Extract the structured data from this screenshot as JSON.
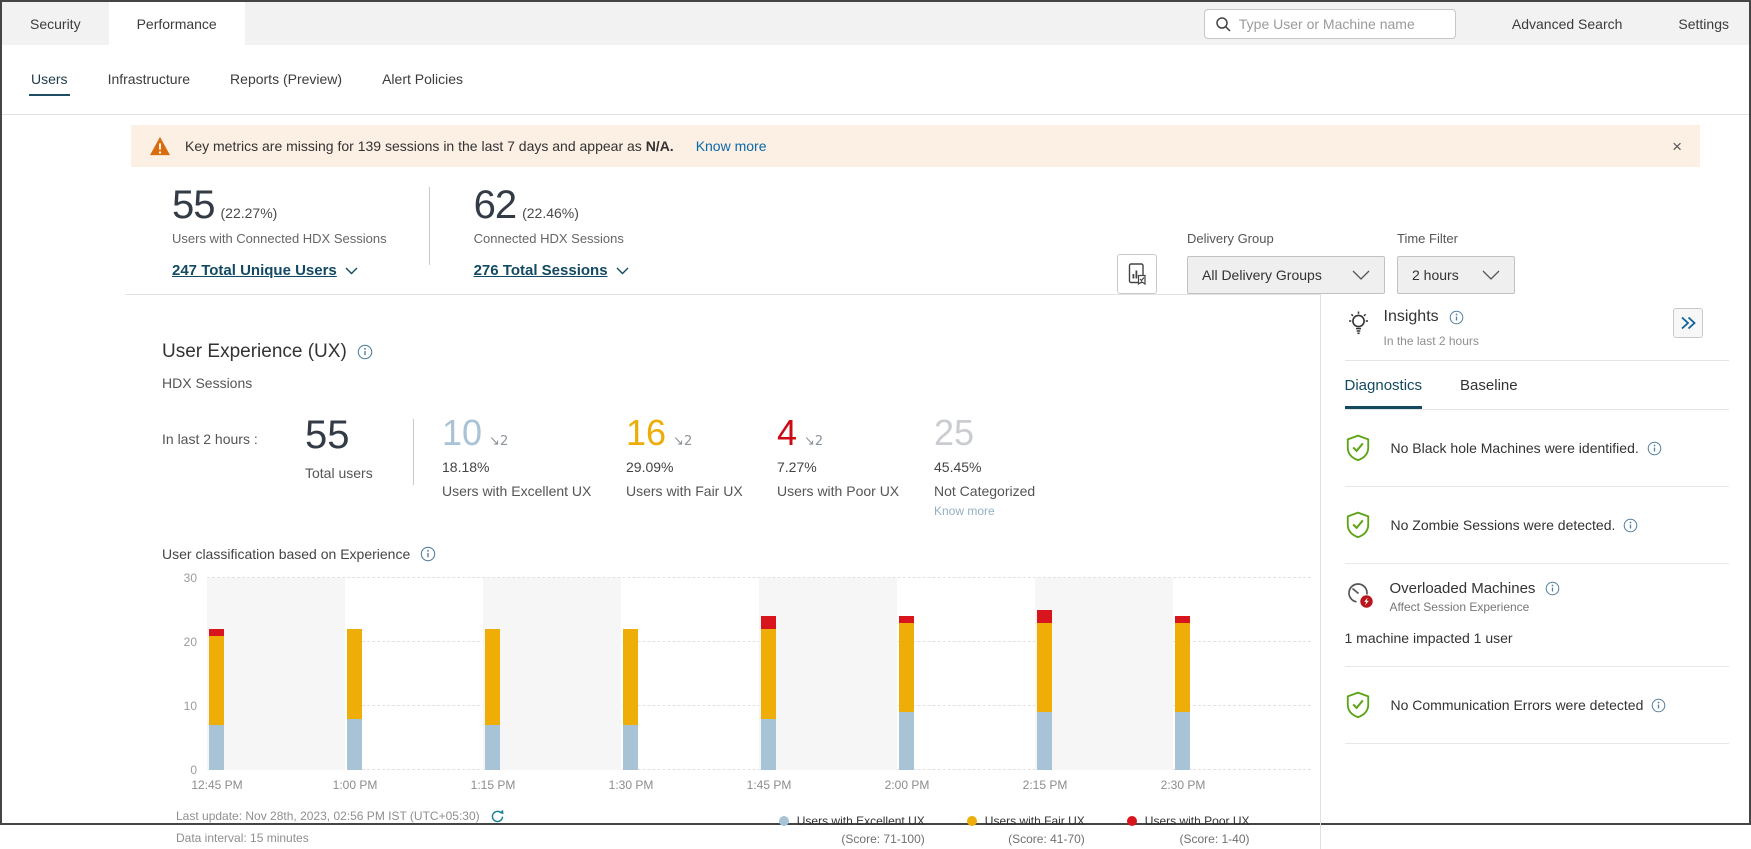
{
  "topbar": {
    "tabs": [
      {
        "label": "Security",
        "active": false
      },
      {
        "label": "Performance",
        "active": true
      }
    ],
    "search_placeholder": "Type User or Machine name",
    "advanced_search": "Advanced Search",
    "settings": "Settings"
  },
  "subnav": {
    "items": [
      {
        "label": "Users",
        "active": true
      },
      {
        "label": "Infrastructure",
        "active": false
      },
      {
        "label": "Reports (Preview)",
        "active": false
      },
      {
        "label": "Alert Policies",
        "active": false
      }
    ]
  },
  "banner": {
    "message": "Key metrics are missing for 139 sessions in the last 7 days and appear as ",
    "bold": "N/A.",
    "link": "Know more",
    "close_glyph": "×"
  },
  "summary": {
    "cards": [
      {
        "value": "55",
        "percent": "(22.27%)",
        "label": "Users with Connected HDX Sessions",
        "link": "247 Total Unique Users"
      },
      {
        "value": "62",
        "percent": "(22.46%)",
        "label": "Connected HDX Sessions",
        "link": "276 Total Sessions"
      }
    ],
    "filters": {
      "delivery_group_label": "Delivery Group",
      "delivery_group_value": "All Delivery Groups",
      "time_filter_label": "Time Filter",
      "time_filter_value": "2 hours"
    }
  },
  "ux": {
    "title": "User Experience (UX)",
    "subtitle": "HDX Sessions",
    "window_label": "In last 2 hours :",
    "total": {
      "value": "55",
      "label": "Total users"
    },
    "stats": [
      {
        "value": "10",
        "delta": "↘2",
        "percent": "18.18%",
        "label": "Users with Excellent UX",
        "color": "#a9c3d6",
        "link": ""
      },
      {
        "value": "16",
        "delta": "↘2",
        "percent": "29.09%",
        "label": "Users with Fair UX",
        "color": "#eeac07",
        "color_note": "amber",
        "link": ""
      },
      {
        "value": "4",
        "delta": "↘2",
        "percent": "7.27%",
        "label": "Users with Poor UX",
        "color": "#cb0a14",
        "link": ""
      },
      {
        "value": "25",
        "delta": "",
        "percent": "45.45%",
        "label": "Not Categorized",
        "color": "#c9cdd1",
        "link": "Know more"
      }
    ]
  },
  "chart_data": {
    "type": "bar",
    "stacked": true,
    "title": "User classification based on Experience",
    "categories": [
      "12:45 PM",
      "1:00 PM",
      "1:15 PM",
      "1:30 PM",
      "1:45 PM",
      "2:00 PM",
      "2:15 PM",
      "2:30 PM"
    ],
    "series": [
      {
        "name": "Users with Excellent UX",
        "score_label": "(Score: 71-100)",
        "color": "#a9c3d6",
        "values": [
          7,
          8,
          7,
          7,
          8,
          9,
          9,
          9
        ]
      },
      {
        "name": "Users with Fair UX",
        "score_label": "(Score: 41-70)",
        "color": "#eead07",
        "values": [
          14,
          14,
          15,
          15,
          14,
          14,
          14,
          14
        ]
      },
      {
        "name": "Users with Poor UX",
        "score_label": "(Score: 1-40)",
        "color": "#d8151d",
        "values": [
          1,
          0,
          0,
          0,
          2,
          1,
          2,
          1
        ]
      }
    ],
    "ylim": [
      0,
      30
    ],
    "yticks": [
      0,
      10,
      20,
      30
    ],
    "grid": "dashed horizontal",
    "legend_position": "bottom-right"
  },
  "footer": {
    "last_update": "Last update: Nov 28th, 2023, 02:56 PM IST (UTC+05:30)",
    "data_interval": "Data interval: 15 minutes"
  },
  "insights": {
    "title": "Insights",
    "window": "In the last 2 hours",
    "tabs": [
      {
        "label": "Diagnostics",
        "active": true
      },
      {
        "label": "Baseline",
        "active": false
      }
    ],
    "items": [
      {
        "text": "No Black hole Machines were identified."
      },
      {
        "text": "No Zombie Sessions were detected."
      },
      {
        "title": "Overloaded Machines",
        "subtitle": "Affect Session Experience",
        "detail": "1 machine impacted 1 user"
      },
      {
        "text": "No Communication Errors were detected"
      }
    ]
  },
  "colors": {
    "accent_teal": "#134a5f",
    "link_blue": "#0b69a8",
    "link_teal": "#134a63",
    "banner_bg": "#fcefe4",
    "warning_orange": "#d96c0c",
    "shield_green": "#5ca414",
    "badge_red": "#b8151c"
  }
}
